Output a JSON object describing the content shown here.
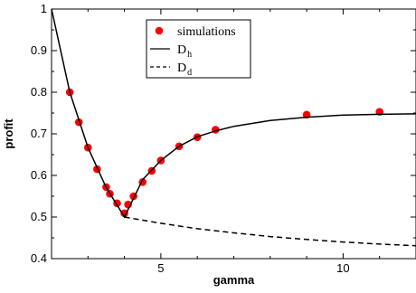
{
  "chart_data": {
    "type": "line",
    "title": "",
    "xlabel": "gamma",
    "ylabel": "profit",
    "xlim": [
      2,
      12
    ],
    "ylim": [
      0.4,
      1.0
    ],
    "x_ticks": [
      5,
      10
    ],
    "x_tick_labels": [
      "5",
      "10"
    ],
    "y_ticks": [
      0.4,
      0.5,
      0.6,
      0.7,
      0.8,
      0.9,
      1.0
    ],
    "y_tick_labels": [
      "0.4",
      "0.5",
      "0.6",
      "0.7",
      "0.8",
      "0.9",
      "1"
    ],
    "legend_position": "top-center",
    "legend": [
      {
        "key": "simulations",
        "text": "simulations",
        "sub": "",
        "marker": "circle"
      },
      {
        "key": "dh",
        "text": "D",
        "sub": "h",
        "marker": "solid-line"
      },
      {
        "key": "dd",
        "text": "D",
        "sub": "d",
        "marker": "dashed-line"
      }
    ],
    "series": [
      {
        "name": "simulations",
        "style": "points",
        "color": "#ff0000",
        "x": [
          2.5,
          2.75,
          3.0,
          3.25,
          3.5,
          3.6,
          3.8,
          4.0,
          4.1,
          4.25,
          4.5,
          4.75,
          5.0,
          5.5,
          6.0,
          6.5,
          9.0,
          11.0
        ],
        "y": [
          0.8,
          0.728,
          0.667,
          0.615,
          0.572,
          0.556,
          0.533,
          0.509,
          0.53,
          0.55,
          0.584,
          0.611,
          0.636,
          0.67,
          0.692,
          0.71,
          0.746,
          0.753
        ]
      },
      {
        "name": "D_h",
        "style": "solid",
        "color": "#000000",
        "x": [
          2.0,
          2.5,
          3.0,
          3.5,
          4.0,
          4.5,
          5.0,
          5.5,
          6.0,
          6.5,
          7.0,
          8.0,
          9.0,
          10.0,
          11.0,
          12.0
        ],
        "y": [
          1.0,
          0.8,
          0.667,
          0.571,
          0.5,
          0.59,
          0.636,
          0.67,
          0.693,
          0.707,
          0.718,
          0.732,
          0.74,
          0.745,
          0.747,
          0.748
        ]
      },
      {
        "name": "D_d",
        "style": "dashed",
        "color": "#000000",
        "x": [
          4.0,
          5.0,
          6.0,
          7.0,
          8.0,
          9.0,
          10.0,
          11.0,
          12.0
        ],
        "y": [
          0.5,
          0.485,
          0.472,
          0.462,
          0.453,
          0.446,
          0.44,
          0.435,
          0.431
        ]
      }
    ]
  }
}
